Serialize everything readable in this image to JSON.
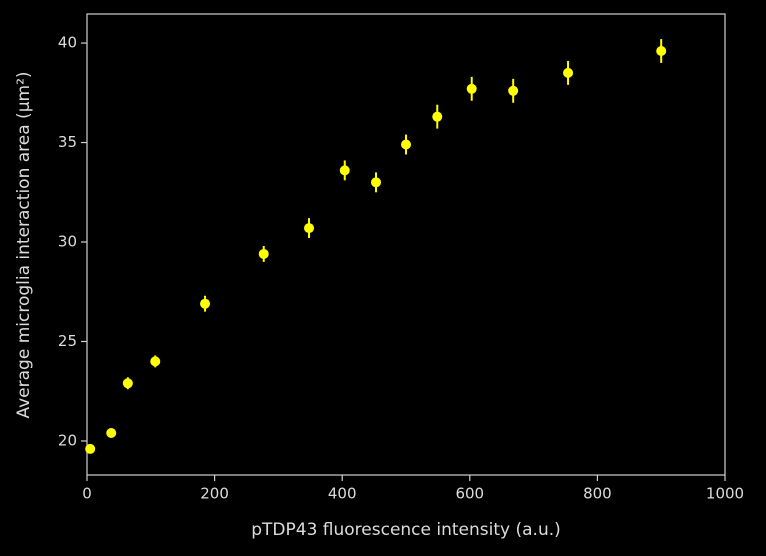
{
  "chart_data": {
    "type": "errorbar-scatter",
    "x_label": "pTDP43 fluorescence intensity (a.u.)",
    "y_label": "Average microglia interaction area (μm²)",
    "x": [
      5,
      38,
      64,
      107,
      185,
      277,
      348,
      404,
      453,
      500,
      549,
      603,
      668,
      754,
      900
    ],
    "values": [
      19.6,
      20.4,
      22.9,
      24.0,
      26.9,
      29.4,
      30.7,
      33.6,
      33.0,
      34.9,
      36.3,
      37.7,
      37.6,
      38.5,
      39.6
    ],
    "errors": [
      0.1,
      0.2,
      0.3,
      0.3,
      0.4,
      0.4,
      0.5,
      0.5,
      0.5,
      0.5,
      0.6,
      0.6,
      0.6,
      0.6,
      0.6
    ],
    "color": "#ffff00",
    "xlim": [
      0,
      1000
    ],
    "xticks": [
      0,
      200,
      400,
      600,
      800,
      1000
    ],
    "ylim": [
      18.29,
      41.46
    ],
    "yticks": [
      20,
      25,
      30,
      35,
      40
    ],
    "grid": false
  }
}
